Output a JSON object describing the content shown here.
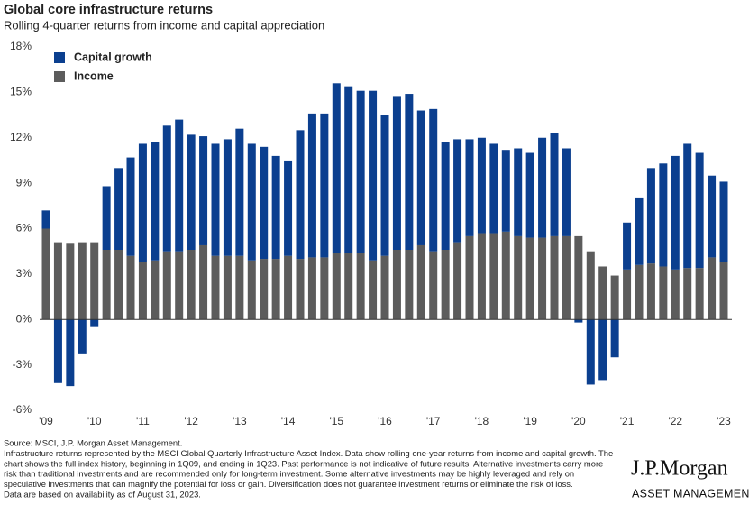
{
  "chart_data": {
    "type": "stacked_bar",
    "title": "Global core infrastructure returns",
    "subtitle": "Rolling 4-quarter returns from income and capital appreciation",
    "categories": [
      "'09",
      null,
      null,
      null,
      "'10",
      null,
      null,
      null,
      "'11",
      null,
      null,
      null,
      "'12",
      null,
      null,
      null,
      "'13",
      null,
      null,
      null,
      "'14",
      null,
      null,
      null,
      "'15",
      null,
      null,
      null,
      "'16",
      null,
      null,
      null,
      "'17",
      null,
      null,
      null,
      "'18",
      null,
      null,
      null,
      "'19",
      null,
      null,
      null,
      "'20",
      null,
      null,
      null,
      "'21",
      null,
      null,
      null,
      "'22",
      null,
      null,
      null,
      "'23"
    ],
    "series": [
      {
        "name": "Income",
        "color": "#5c5c5c",
        "values": [
          6.0,
          5.1,
          5.0,
          5.1,
          5.1,
          4.6,
          4.6,
          4.2,
          3.8,
          3.9,
          4.5,
          4.5,
          4.6,
          4.9,
          4.2,
          4.2,
          4.2,
          3.9,
          4.0,
          4.0,
          4.2,
          4.0,
          4.1,
          4.1,
          4.4,
          4.4,
          4.4,
          3.9,
          4.2,
          4.6,
          4.6,
          4.9,
          4.5,
          4.6,
          5.1,
          5.5,
          5.7,
          5.7,
          5.8,
          5.5,
          5.4,
          5.4,
          5.5,
          5.5,
          5.5,
          4.5,
          3.5,
          2.9,
          3.3,
          3.6,
          3.7,
          3.5,
          3.3,
          3.4,
          3.4,
          4.1,
          3.8
        ]
      },
      {
        "name": "Capital growth",
        "color": "#0b3f8f",
        "values": [
          1.2,
          -4.2,
          -4.4,
          -2.3,
          -0.5,
          4.2,
          5.4,
          6.5,
          7.8,
          7.8,
          8.3,
          8.7,
          7.6,
          7.2,
          7.4,
          7.7,
          8.4,
          7.7,
          7.4,
          6.8,
          6.3,
          8.5,
          9.5,
          9.5,
          11.2,
          11.0,
          10.7,
          11.2,
          9.3,
          10.1,
          10.3,
          8.9,
          9.4,
          7.1,
          6.8,
          6.4,
          6.3,
          5.9,
          5.4,
          5.8,
          5.6,
          6.6,
          6.8,
          5.8,
          -0.2,
          -4.3,
          -4.0,
          -2.5,
          3.1,
          4.4,
          6.3,
          6.8,
          7.5,
          8.2,
          7.6,
          5.4,
          5.3
        ]
      }
    ],
    "ylim": [
      -6,
      18
    ],
    "yticks": [
      {
        "value": -6,
        "label": "-6%"
      },
      {
        "value": -3,
        "label": "-3%"
      },
      {
        "value": 0,
        "label": "0%"
      },
      {
        "value": 3,
        "label": "3%"
      },
      {
        "value": 6,
        "label": "6%"
      },
      {
        "value": 9,
        "label": "9%"
      },
      {
        "value": 12,
        "label": "12%"
      },
      {
        "value": 15,
        "label": "15%"
      },
      {
        "value": 18,
        "label": "18%"
      }
    ],
    "notes": [
      "Source: MSCI, J.P. Morgan Asset Management.",
      "Infrastructure returns represented by the MSCI Global Quarterly Infrastructure Asset Index. Data show rolling one-year returns from income and capital growth. The",
      "chart shows the full index history, beginning in 1Q09, and ending in 1Q23. Past performance is not indicative of future results. Alternative investments carry more",
      "risk than traditional investments and are recommended only for long-term investment. Some alternative investments may be highly leveraged and rely on",
      "speculative investments that can magnify the potential for loss or gain. Diversification does not guarantee investment returns or eliminate the risk of loss.",
      "Data are based on availability as of August 31, 2023."
    ],
    "logo": {
      "name": "J.P.Morgan",
      "tagline": "ASSET MANAGEMENT"
    }
  }
}
